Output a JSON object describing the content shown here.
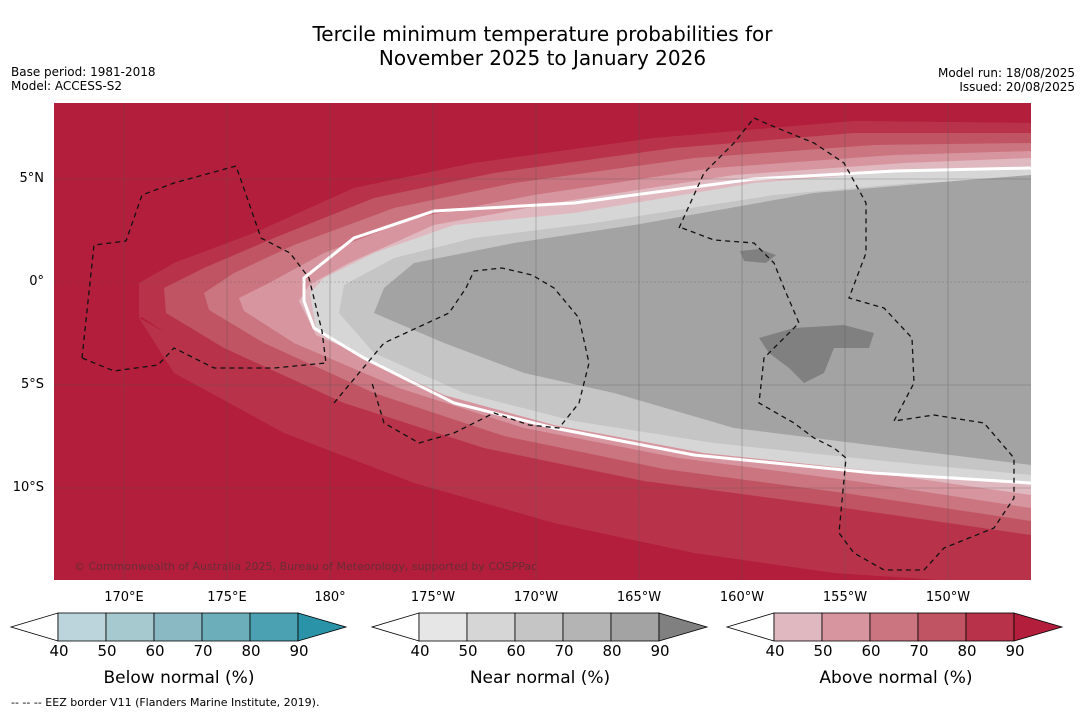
{
  "title_line1": "Tercile minimum temperature probabilities for",
  "title_line2": "November 2025 to January 2026",
  "meta_left": {
    "base_period": "Base period: 1981-2018",
    "model": "Model: ACCESS-S2"
  },
  "meta_right": {
    "model_run": "Model run: 18/08/2025",
    "issued": "Issued: 20/08/2025"
  },
  "lat_labels": [
    "5°N",
    "0°",
    "5°S",
    "10°S"
  ],
  "lon_labels": [
    "170°E",
    "175°E",
    "180°",
    "175°W",
    "170°W",
    "165°W",
    "160°W",
    "155°W",
    "150°W"
  ],
  "copyright": "© Commonwealth of Australia 2025, Bureau of Meteorology, supported by COSPPac",
  "colorbars": [
    {
      "label": "Below normal (%)",
      "ticks": [
        "40",
        "50",
        "60",
        "70",
        "80",
        "90"
      ],
      "colors": [
        "#ffffff",
        "#bcd4db",
        "#a6c8cf",
        "#8ab9c4",
        "#6daebb",
        "#4ba1b1",
        "#2a93a7"
      ]
    },
    {
      "label": "Near normal (%)",
      "ticks": [
        "40",
        "50",
        "60",
        "70",
        "80",
        "90"
      ],
      "colors": [
        "#ffffff",
        "#e6e6e6",
        "#d6d6d6",
        "#c5c5c5",
        "#b4b4b4",
        "#a3a3a3",
        "#808080"
      ]
    },
    {
      "label": "Above normal (%)",
      "ticks": [
        "40",
        "50",
        "60",
        "70",
        "80",
        "90"
      ],
      "colors": [
        "#ffffff",
        "#e0b9c0",
        "#d7969f",
        "#cb7580",
        "#c05463",
        "#b83349",
        "#b21e3b"
      ]
    }
  ],
  "footnote": "--  --  -- EEZ border V11 (Flanders Marine Institute, 2019).",
  "map_colors": {
    "above_90": "#b21e3b",
    "above_80": "#b83349",
    "above_70": "#c05463",
    "above_60": "#cb7580",
    "above_50": "#d7969f",
    "above_40": "#e0b9c0",
    "near_60": "#d6d6d6",
    "near_70": "#c5c5c5",
    "near_80": "#a3a3a3",
    "near_90": "#808080"
  }
}
